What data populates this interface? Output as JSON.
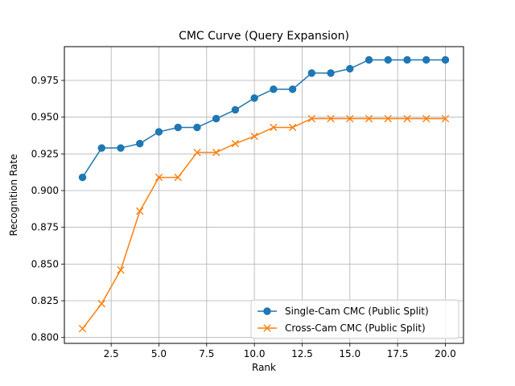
{
  "chart_data": {
    "type": "line",
    "title": "CMC Curve (Query Expansion)",
    "xlabel": "Rank",
    "ylabel": "Recognition Rate",
    "xlim": [
      0.05,
      20.95
    ],
    "ylim": [
      0.796,
      0.998
    ],
    "x_ticks": [
      2.5,
      5.0,
      7.5,
      10.0,
      12.5,
      15.0,
      17.5,
      20.0
    ],
    "x_tick_labels": [
      "2.5",
      "5.0",
      "7.5",
      "10.0",
      "12.5",
      "15.0",
      "17.5",
      "20.0"
    ],
    "y_ticks": [
      0.8,
      0.825,
      0.85,
      0.875,
      0.9,
      0.925,
      0.95,
      0.975
    ],
    "y_tick_labels": [
      "0.800",
      "0.825",
      "0.850",
      "0.875",
      "0.900",
      "0.925",
      "0.950",
      "0.975"
    ],
    "grid": true,
    "legend_position": "lower-right",
    "x": [
      1,
      2,
      3,
      4,
      5,
      6,
      7,
      8,
      9,
      10,
      11,
      12,
      13,
      14,
      15,
      16,
      17,
      18,
      19,
      20
    ],
    "series": [
      {
        "name": "Single-Cam CMC (Public Split)",
        "color": "#1f77b4",
        "marker": "circle",
        "values": [
          0.909,
          0.929,
          0.929,
          0.932,
          0.94,
          0.943,
          0.943,
          0.949,
          0.955,
          0.963,
          0.969,
          0.969,
          0.98,
          0.98,
          0.983,
          0.989,
          0.989,
          0.989,
          0.989,
          0.989
        ]
      },
      {
        "name": "Cross-Cam CMC (Public Split)",
        "color": "#ff7f0e",
        "marker": "x",
        "values": [
          0.806,
          0.823,
          0.846,
          0.886,
          0.909,
          0.909,
          0.926,
          0.926,
          0.932,
          0.937,
          0.943,
          0.943,
          0.949,
          0.949,
          0.949,
          0.949,
          0.949,
          0.949,
          0.949,
          0.949
        ]
      }
    ]
  }
}
